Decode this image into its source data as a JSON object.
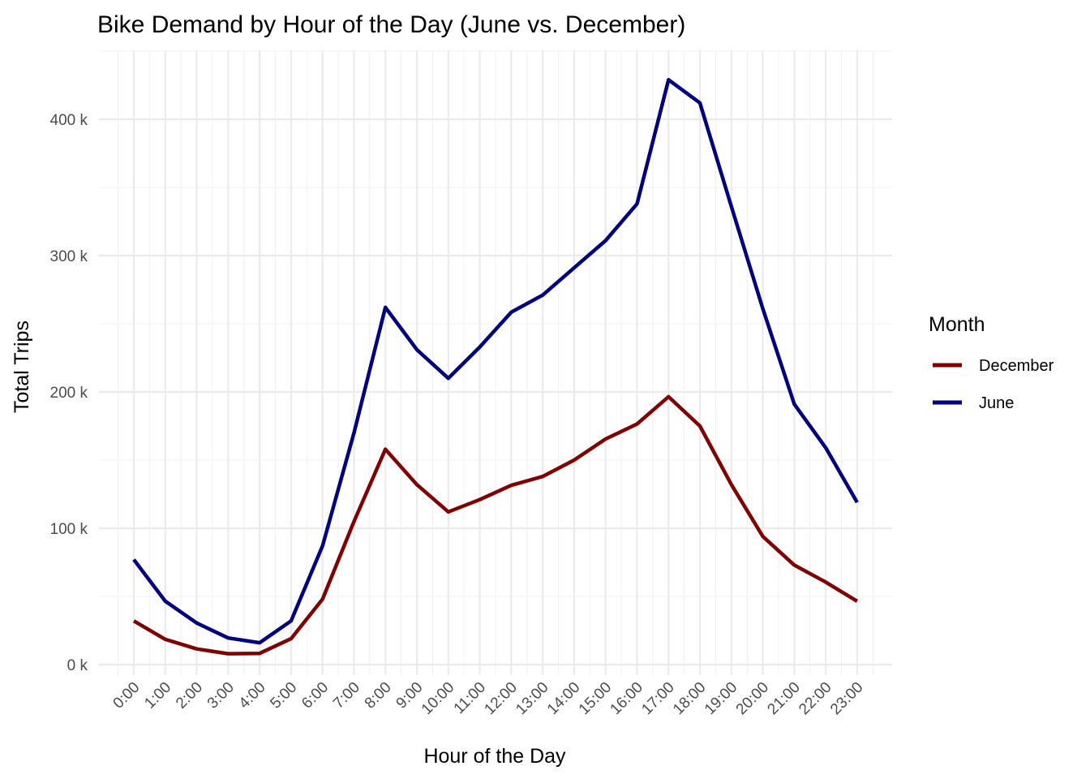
{
  "chart_data": {
    "type": "line",
    "title": "Bike Demand by Hour of the Day (June vs. December)",
    "xlabel": "Hour of the Day",
    "ylabel": "Total Trips",
    "categories": [
      "0:00",
      "1:00",
      "2:00",
      "3:00",
      "4:00",
      "5:00",
      "6:00",
      "7:00",
      "8:00",
      "9:00",
      "10:00",
      "11:00",
      "12:00",
      "13:00",
      "14:00",
      "15:00",
      "16:00",
      "17:00",
      "18:00",
      "19:00",
      "20:00",
      "21:00",
      "22:00",
      "23:00"
    ],
    "ylim": [
      0,
      450000
    ],
    "y_ticks": [
      0,
      100000,
      200000,
      300000,
      400000
    ],
    "y_tick_labels": [
      "0 k",
      "100 k",
      "200 k",
      "300 k",
      "400 k"
    ],
    "grid": true,
    "legend": {
      "title": "Month",
      "position": "right"
    },
    "series": [
      {
        "name": "December",
        "color": "#7f0000",
        "values": [
          32000,
          18500,
          11500,
          8000,
          8200,
          19000,
          48000,
          105000,
          158000,
          132000,
          112000,
          121000,
          131500,
          138000,
          150000,
          165500,
          176500,
          196500,
          175000,
          132000,
          94000,
          73000,
          60500,
          46500
        ]
      },
      {
        "name": "June",
        "color": "#00007f",
        "values": [
          77000,
          46500,
          30500,
          19500,
          16000,
          32000,
          87000,
          170000,
          262000,
          231000,
          210000,
          233000,
          258500,
          271000,
          291000,
          311000,
          338000,
          429000,
          412000,
          336000,
          261000,
          191000,
          159000,
          119000
        ]
      }
    ]
  }
}
